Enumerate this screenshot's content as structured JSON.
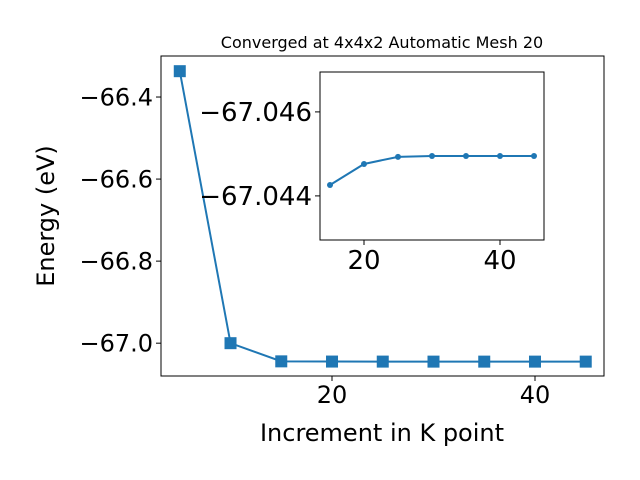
{
  "chart_data": [
    {
      "type": "line",
      "title": "Converged at 4x4x2 Automatic Mesh 20",
      "x_label": "Increment in K point",
      "y_label": "Energy (eV)",
      "x": [
        5,
        10,
        15,
        20,
        25,
        30,
        35,
        40,
        45
      ],
      "series": [
        {
          "color": "#1f77b4",
          "marker": "square",
          "values": [
            -66.337,
            -67.0,
            -67.0443,
            -67.0448,
            -67.0449,
            -67.04495,
            -67.04495,
            -67.04495,
            -67.04495
          ]
        }
      ],
      "xlim": [
        3.15,
        46.8
      ],
      "xticks": [
        20,
        40
      ],
      "ylim": [
        -67.08,
        -66.3
      ],
      "yticks": [
        {
          "value": -67.0,
          "label": "−67.0"
        },
        {
          "value": -66.8,
          "label": "−66.8"
        },
        {
          "value": -66.6,
          "label": "−66.6"
        },
        {
          "value": -66.4,
          "label": "−66.4"
        }
      ]
    },
    {
      "type": "line",
      "x": [
        15,
        20,
        25,
        30,
        35,
        40,
        45
      ],
      "series": [
        {
          "color": "#1f77b4",
          "marker": "circle",
          "values": [
            -67.04426,
            -67.04476,
            -67.04493,
            -67.04495,
            -67.04495,
            -67.04495,
            -67.04495
          ]
        }
      ],
      "xlim": [
        13.53,
        46.47
      ],
      "xticks": [
        20,
        40
      ],
      "ylim": [
        -67.04295,
        -67.04695
      ],
      "yticks": [
        {
          "value": -67.044,
          "label": "−67.044"
        },
        {
          "value": -67.046,
          "label": "−67.046"
        }
      ]
    }
  ]
}
